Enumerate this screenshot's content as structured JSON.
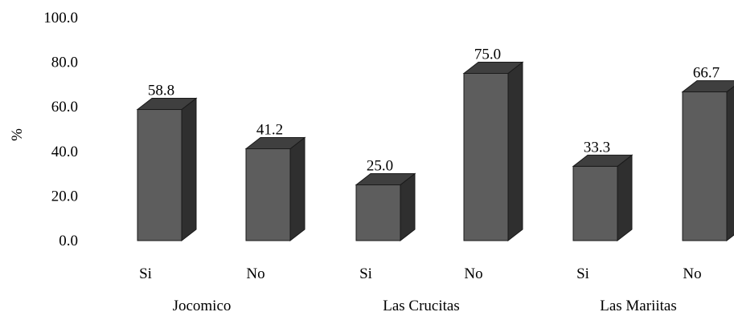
{
  "chart_data": {
    "type": "bar",
    "style": "3d-column",
    "ylabel": "%",
    "ylim": [
      0,
      100
    ],
    "yticks": [
      "0.0",
      "20.0",
      "40.0",
      "60.0",
      "80.0",
      "100.0"
    ],
    "grid": false,
    "legend": "none",
    "groups": [
      "Jocomico",
      "Las Crucitas",
      "Las Mariitas"
    ],
    "categories": [
      "Si",
      "No",
      "Si",
      "No",
      "Si",
      "No"
    ],
    "values": [
      58.8,
      41.2,
      25.0,
      75.0,
      33.3,
      66.7
    ],
    "value_labels": [
      "58.8",
      "41.2",
      "25.0",
      "75.0",
      "33.3",
      "66.7"
    ],
    "colors": {
      "front": "#5d5d5d",
      "top": "#3f3f3f",
      "side": "#2f2f2f",
      "edge": "#1a1a1a"
    }
  }
}
